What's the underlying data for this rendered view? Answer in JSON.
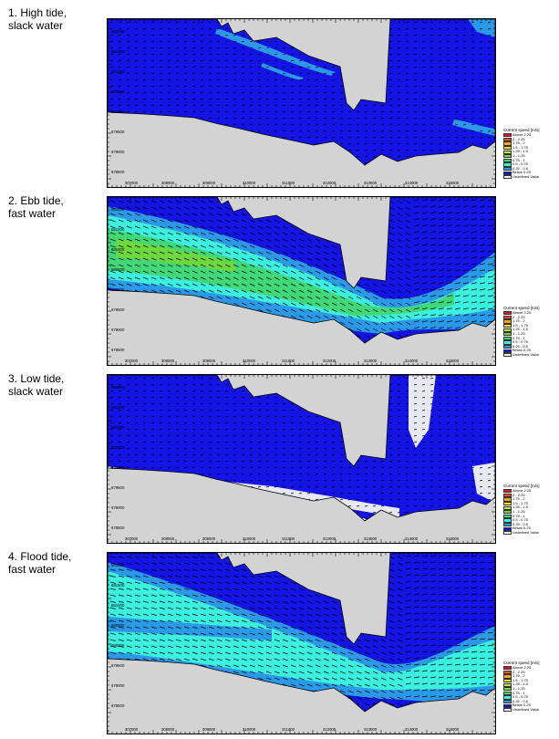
{
  "panels": [
    {
      "title_line1": "1. High tide,",
      "title_line2": "slack water",
      "state": "high_slack"
    },
    {
      "title_line1": "2. Ebb tide,",
      "title_line2": "fast water",
      "state": "ebb_fast"
    },
    {
      "title_line1": "3. Low tide,",
      "title_line2": "slack water",
      "state": "low_slack"
    },
    {
      "title_line1": "4. Flood tide,",
      "title_line2": "fast water",
      "state": "flood_fast"
    }
  ],
  "axis": {
    "x_ticks": [
      "307000",
      "308000",
      "309000",
      "310000",
      "311000",
      "312000",
      "313000",
      "314000",
      "315000"
    ],
    "y_ticks": [
      "682000",
      "681500",
      "681000",
      "680500",
      "680000",
      "679500",
      "679000",
      "678500"
    ]
  },
  "legend": {
    "title": "Current speed [m/s]",
    "items": [
      {
        "label": "Above 2.25",
        "color": "#e8102a"
      },
      {
        "label": "2 - 2.25",
        "color": "#f04a1e"
      },
      {
        "label": "1.75 - 2",
        "color": "#f5a319"
      },
      {
        "label": "1.5 - 1.75",
        "color": "#f5e21a"
      },
      {
        "label": "1.25 - 1.5",
        "color": "#bfe832"
      },
      {
        "label": "1 - 1.25",
        "color": "#6fd83c"
      },
      {
        "label": "0.75 - 1",
        "color": "#40d878"
      },
      {
        "label": "0.5 - 0.75",
        "color": "#3cf0e0"
      },
      {
        "label": "0.25 - 0.5",
        "color": "#2a9ae8"
      },
      {
        "label": "Below 0.25",
        "color": "#1414e6"
      },
      {
        "label": "Undefined Value",
        "color": "#ffffff"
      }
    ]
  },
  "colors": {
    "land": "#d3d3d3",
    "dry_bank": "#e8e8f0",
    "speed_low": "#1414e6",
    "speed_mid": "#2a9ae8",
    "speed_cyan": "#3cf0e0",
    "speed_green": "#40d878",
    "speed_lime": "#6fd83c"
  }
}
